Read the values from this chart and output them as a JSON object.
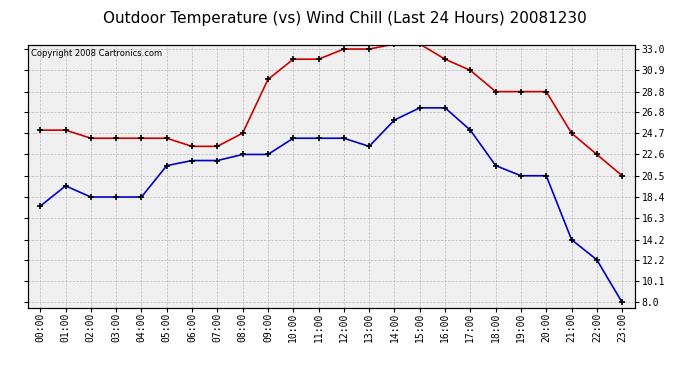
{
  "title": "Outdoor Temperature (vs) Wind Chill (Last 24 Hours) 20081230",
  "copyright_text": "Copyright 2008 Cartronics.com",
  "hours": [
    "00:00",
    "01:00",
    "02:00",
    "03:00",
    "04:00",
    "05:00",
    "06:00",
    "07:00",
    "08:00",
    "09:00",
    "10:00",
    "11:00",
    "12:00",
    "13:00",
    "14:00",
    "15:00",
    "16:00",
    "17:00",
    "18:00",
    "19:00",
    "20:00",
    "21:00",
    "22:00",
    "23:00"
  ],
  "temp_red": [
    25.0,
    25.0,
    24.2,
    24.2,
    24.2,
    24.2,
    23.4,
    23.4,
    24.7,
    30.0,
    32.0,
    32.0,
    33.0,
    33.0,
    33.5,
    33.5,
    32.0,
    30.9,
    28.8,
    28.8,
    28.8,
    24.7,
    22.6,
    20.5
  ],
  "wind_chill_blue": [
    17.5,
    19.5,
    18.4,
    18.4,
    18.4,
    21.5,
    22.0,
    22.0,
    22.6,
    22.6,
    24.2,
    24.2,
    24.2,
    23.4,
    26.0,
    27.2,
    27.2,
    25.0,
    21.5,
    20.5,
    20.5,
    14.2,
    12.2,
    8.0
  ],
  "ylim_min": 7.5,
  "ylim_max": 33.4,
  "yticks": [
    8.0,
    10.1,
    12.2,
    14.2,
    16.3,
    18.4,
    20.5,
    22.6,
    24.7,
    26.8,
    28.8,
    30.9,
    33.0
  ],
  "red_color": "#cc0000",
  "blue_color": "#0000cc",
  "bg_color": "#ffffff",
  "plot_bg_color": "#f0f0f0",
  "grid_color": "#bbbbbb",
  "title_fontsize": 11,
  "copyright_fontsize": 6,
  "tick_fontsize": 7,
  "ytick_fontsize": 7
}
